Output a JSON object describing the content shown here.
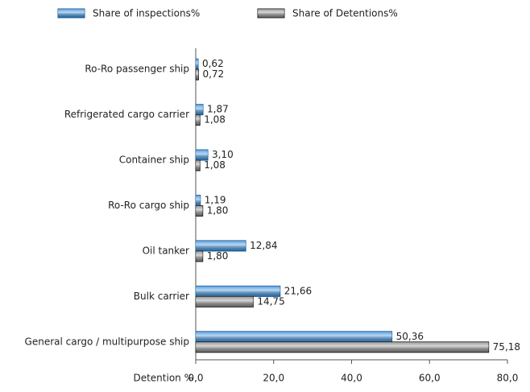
{
  "chart_data": {
    "type": "bar",
    "orientation": "horizontal",
    "categories": [
      "Ro-Ro passenger ship",
      "Refrigerated cargo carrier",
      "Container ship",
      "Ro-Ro cargo ship",
      "Oil tanker",
      "Bulk carrier",
      "General cargo / multipurpose ship"
    ],
    "series": [
      {
        "name": "Share of inspections%",
        "color": "#3a8fd9",
        "values": [
          0.62,
          1.87,
          3.1,
          1.19,
          12.84,
          21.66,
          50.36
        ],
        "value_labels": [
          "0,62",
          "1,87",
          "3,10",
          "1,19",
          "12,84",
          "21,66",
          "50,36"
        ]
      },
      {
        "name": "Share of Detentions%",
        "color": "#8a8a8a",
        "values": [
          0.72,
          1.08,
          1.08,
          1.8,
          1.8,
          14.75,
          75.18
        ],
        "value_labels": [
          "0,72",
          "1,08",
          "1,08",
          "1,80",
          "1,80",
          "14,75",
          "75,18"
        ]
      }
    ],
    "xlabel": "Detention %",
    "xlim": [
      0,
      80
    ],
    "xticks": [
      {
        "value": 0,
        "label": "0,0"
      },
      {
        "value": 20,
        "label": "20,0"
      },
      {
        "value": 40,
        "label": "40,0"
      },
      {
        "value": 60,
        "label": "60,0"
      },
      {
        "value": 80,
        "label": "80,0"
      }
    ],
    "legend": "top"
  }
}
